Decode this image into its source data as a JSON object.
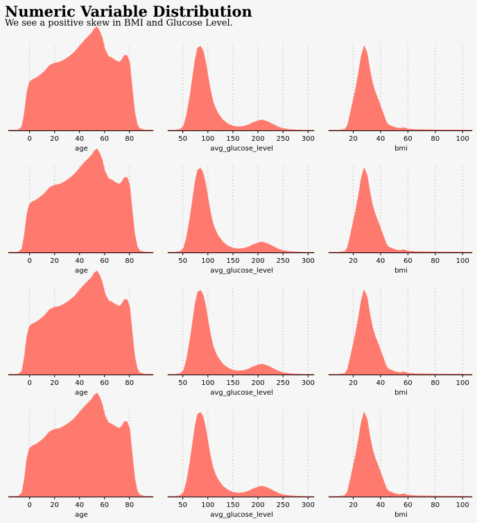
{
  "title": "Numeric Variable Distribution",
  "subtitle": "We see a positive skew in BMI and Glucose Level.",
  "fill_color": "#ff7a6e",
  "grid_color": "#aaaaaa",
  "chart_data": [
    {
      "type": "area",
      "variable": "age",
      "xlabel": "age",
      "xlim": [
        -17,
        99
      ],
      "xticks": [
        0,
        20,
        40,
        60,
        80
      ],
      "grid_x": [
        0,
        20,
        40,
        60,
        80
      ],
      "grid": "vertical-dotted",
      "points": [
        [
          -17,
          0
        ],
        [
          -9,
          0.003
        ],
        [
          -6,
          0.04
        ],
        [
          -4,
          0.2
        ],
        [
          -2,
          0.45
        ],
        [
          0,
          0.57
        ],
        [
          2,
          0.6
        ],
        [
          5,
          0.62
        ],
        [
          8,
          0.65
        ],
        [
          12,
          0.7
        ],
        [
          16,
          0.77
        ],
        [
          20,
          0.8
        ],
        [
          24,
          0.81
        ],
        [
          28,
          0.84
        ],
        [
          32,
          0.88
        ],
        [
          36,
          0.93
        ],
        [
          40,
          1.0
        ],
        [
          44,
          1.07
        ],
        [
          48,
          1.13
        ],
        [
          50,
          1.16
        ],
        [
          52,
          1.21
        ],
        [
          54,
          1.23
        ],
        [
          56,
          1.18
        ],
        [
          58,
          1.1
        ],
        [
          60,
          0.97
        ],
        [
          63,
          0.88
        ],
        [
          66,
          0.86
        ],
        [
          69,
          0.83
        ],
        [
          72,
          0.81
        ],
        [
          74,
          0.84
        ],
        [
          76,
          0.89
        ],
        [
          78,
          0.89
        ],
        [
          80,
          0.8
        ],
        [
          82,
          0.5
        ],
        [
          84,
          0.22
        ],
        [
          86,
          0.07
        ],
        [
          88,
          0.02
        ],
        [
          92,
          0.003
        ],
        [
          99,
          0
        ]
      ]
    },
    {
      "type": "area",
      "variable": "avg_glucose_level",
      "xlabel": "avg_glucose_level",
      "xlim": [
        20,
        312
      ],
      "xticks": [
        50,
        100,
        150,
        200,
        250,
        300
      ],
      "grid_x": [
        50,
        100,
        150,
        200,
        250,
        300
      ],
      "grid": "vertical-dotted",
      "points": [
        [
          20,
          0
        ],
        [
          35,
          0.002
        ],
        [
          45,
          0.01
        ],
        [
          52,
          0.05
        ],
        [
          58,
          0.18
        ],
        [
          65,
          0.42
        ],
        [
          70,
          0.63
        ],
        [
          75,
          0.84
        ],
        [
          80,
          0.98
        ],
        [
          85,
          1.0
        ],
        [
          90,
          0.95
        ],
        [
          95,
          0.82
        ],
        [
          100,
          0.64
        ],
        [
          105,
          0.47
        ],
        [
          110,
          0.34
        ],
        [
          115,
          0.26
        ],
        [
          120,
          0.2
        ],
        [
          125,
          0.16
        ],
        [
          130,
          0.12
        ],
        [
          140,
          0.075
        ],
        [
          150,
          0.05
        ],
        [
          160,
          0.04
        ],
        [
          170,
          0.045
        ],
        [
          180,
          0.06
        ],
        [
          190,
          0.09
        ],
        [
          200,
          0.11
        ],
        [
          205,
          0.12
        ],
        [
          210,
          0.12
        ],
        [
          220,
          0.1
        ],
        [
          230,
          0.07
        ],
        [
          240,
          0.04
        ],
        [
          250,
          0.02
        ],
        [
          260,
          0.01
        ],
        [
          275,
          0.004
        ],
        [
          290,
          0.001
        ],
        [
          312,
          0
        ]
      ]
    },
    {
      "type": "area",
      "variable": "bmi",
      "xlabel": "bmi",
      "xlim": [
        2,
        107
      ],
      "xticks": [
        20,
        40,
        60,
        80,
        100
      ],
      "grid_x": [
        20,
        40,
        60,
        80,
        100
      ],
      "grid": "vertical-dotted",
      "points": [
        [
          2,
          0
        ],
        [
          10,
          0.002
        ],
        [
          14,
          0.01
        ],
        [
          16,
          0.06
        ],
        [
          18,
          0.2
        ],
        [
          20,
          0.35
        ],
        [
          22,
          0.5
        ],
        [
          24,
          0.68
        ],
        [
          26,
          0.88
        ],
        [
          28,
          1.0
        ],
        [
          30,
          0.92
        ],
        [
          32,
          0.72
        ],
        [
          34,
          0.56
        ],
        [
          36,
          0.45
        ],
        [
          38,
          0.37
        ],
        [
          40,
          0.28
        ],
        [
          42,
          0.19
        ],
        [
          44,
          0.1
        ],
        [
          46,
          0.06
        ],
        [
          48,
          0.05
        ],
        [
          50,
          0.035
        ],
        [
          54,
          0.02
        ],
        [
          57,
          0.03
        ],
        [
          60,
          0.015
        ],
        [
          65,
          0.008
        ],
        [
          70,
          0.006
        ],
        [
          80,
          0.004
        ],
        [
          90,
          0.003
        ],
        [
          100,
          0.002
        ],
        [
          107,
          0
        ]
      ]
    }
  ]
}
